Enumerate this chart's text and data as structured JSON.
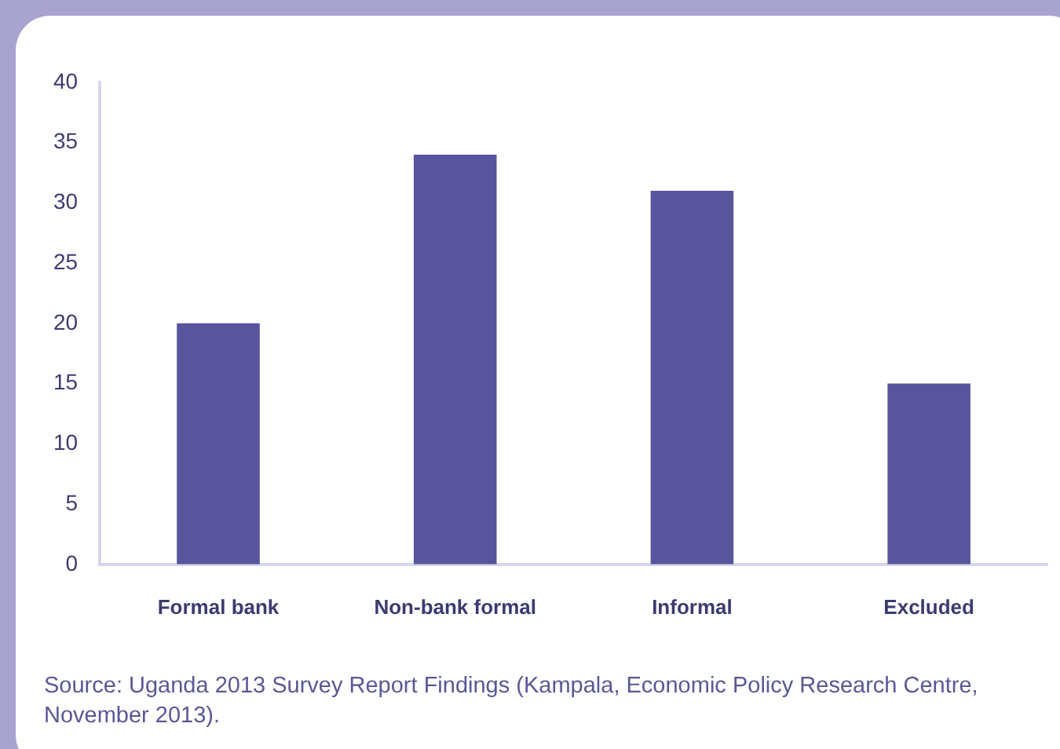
{
  "chart_data": {
    "type": "bar",
    "categories": [
      "Formal bank",
      "Non-bank formal",
      "Informal",
      "Excluded"
    ],
    "values": [
      20,
      34,
      31,
      15
    ],
    "color": "#58559c",
    "ylim": [
      0,
      40
    ],
    "yticks": [
      0,
      5,
      10,
      15,
      20,
      25,
      30,
      35,
      40
    ],
    "grid": false,
    "legend": false,
    "annotations": [
      "Source: Uganda 2013 Survey Report Findings (Kampala, Economic Policy Research Centre, November 2013)."
    ]
  }
}
